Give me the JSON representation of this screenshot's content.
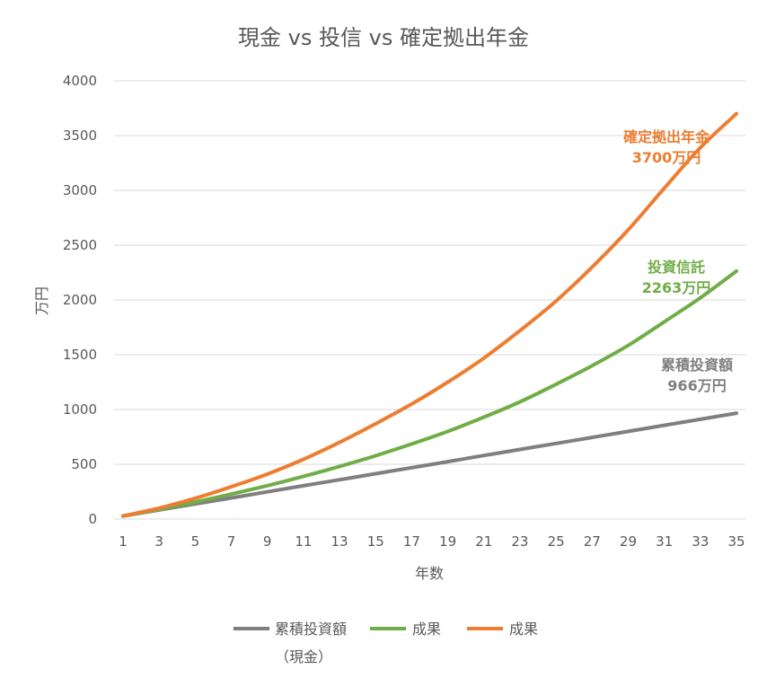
{
  "chart_data": {
    "type": "line",
    "title": "現金 vs 投信 vs 確定拠出年金",
    "xlabel": "年数",
    "ylabel": "万円",
    "ylim": [
      0,
      4000
    ],
    "yticks": [
      "0",
      "500",
      "1000",
      "1500",
      "2000",
      "2500",
      "3000",
      "3500",
      "4000"
    ],
    "xlim": [
      1,
      35
    ],
    "xtick_labels": [
      "1",
      "3",
      "5",
      "7",
      "9",
      "11",
      "13",
      "15",
      "17",
      "19",
      "21",
      "23",
      "25",
      "27",
      "29",
      "31",
      "33",
      "35"
    ],
    "x": [
      1,
      3,
      5,
      7,
      9,
      11,
      13,
      15,
      17,
      19,
      21,
      23,
      25,
      27,
      29,
      31,
      33,
      35
    ],
    "grid": true,
    "legend_position": "bottom",
    "series": [
      {
        "name": "累積投資額",
        "name_line2": "（現金）",
        "color": "#7f7f7f",
        "values": [
          28,
          83,
          138,
          193,
          248,
          304,
          359,
          414,
          469,
          524,
          580,
          635,
          690,
          745,
          800,
          856,
          911,
          966
        ]
      },
      {
        "name": "成果",
        "color": "#70ad47",
        "values": [
          28,
          88,
          155,
          228,
          305,
          390,
          480,
          578,
          685,
          800,
          930,
          1070,
          1230,
          1400,
          1585,
          1800,
          2020,
          2263
        ]
      },
      {
        "name": "成果",
        "color": "#ed7d31",
        "values": [
          28,
          100,
          190,
          295,
          410,
          545,
          700,
          870,
          1050,
          1250,
          1470,
          1720,
          1990,
          2300,
          2640,
          3020,
          3390,
          3700
        ]
      }
    ],
    "annotations": [
      {
        "line1": "確定拠出年金",
        "line2": "3700万円",
        "color": "#ed7d31"
      },
      {
        "line1": "投資信託",
        "line2": "2263万円",
        "color": "#70ad47"
      },
      {
        "line1": "累積投資額",
        "line2": "966万円",
        "color": "#7f7f7f"
      }
    ]
  }
}
